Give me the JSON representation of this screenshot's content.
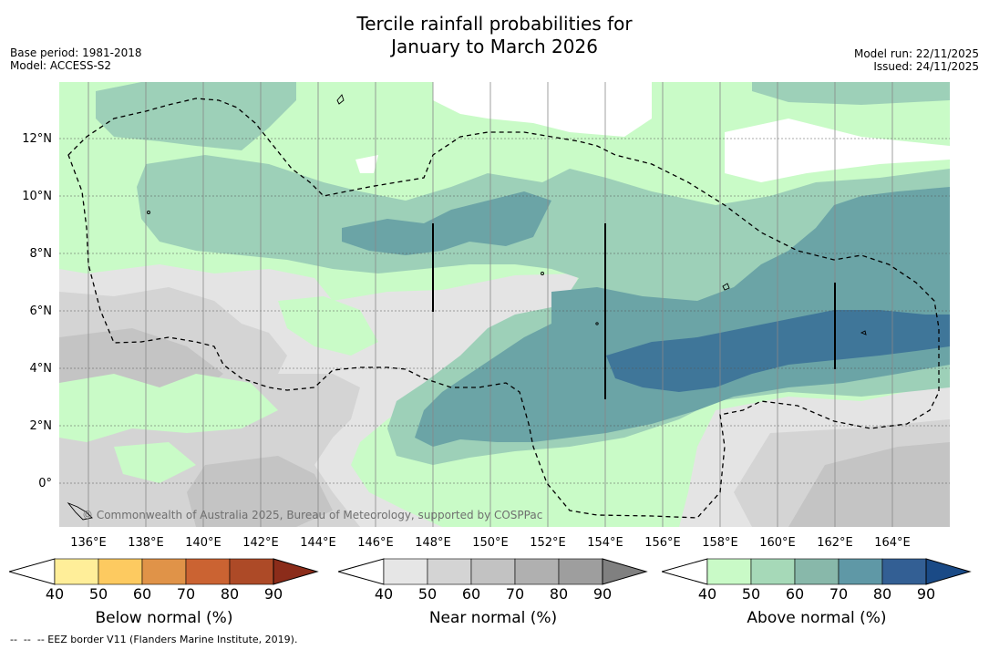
{
  "title_line1": "Tercile rainfall probabilities for",
  "title_line2": "January to March 2026",
  "meta": {
    "base_period": "Base period: 1981-2018",
    "model": "Model: ACCESS-S2",
    "model_run": "Model run: 22/11/2025",
    "issued": "Issued: 24/11/2025"
  },
  "copyright": "© Commonwealth of Australia 2025, Bureau of Meteorology, supported by COSPPac",
  "lat_labels": [
    "12°N",
    "10°N",
    "8°N",
    "6°N",
    "4°N",
    "2°N",
    "0°"
  ],
  "lon_labels": [
    "136°E",
    "138°E",
    "140°E",
    "142°E",
    "144°E",
    "146°E",
    "148°E",
    "150°E",
    "152°E",
    "154°E",
    "156°E",
    "158°E",
    "160°E",
    "162°E",
    "164°E"
  ],
  "colorbars": {
    "below": {
      "title": "Below normal (%)",
      "ticks": [
        "40",
        "50",
        "60",
        "70",
        "80",
        "90"
      ]
    },
    "near": {
      "title": "Near normal (%)",
      "ticks": [
        "40",
        "50",
        "60",
        "70",
        "80",
        "90"
      ]
    },
    "above": {
      "title": "Above normal (%)",
      "ticks": [
        "40",
        "50",
        "60",
        "70",
        "80",
        "90"
      ]
    }
  },
  "colors": {
    "below": [
      "#ffee99",
      "#fdca60",
      "#e09348",
      "#cb6332",
      "#ad4a27",
      "#8b2c1a"
    ],
    "near": [
      "#e6e6e6",
      "#d4d4d4",
      "#c2c2c2",
      "#b0b0b0",
      "#9e9e9e",
      "#808080"
    ],
    "above": [
      "#c9fac7",
      "#a6d9b8",
      "#88b8aa",
      "#5f98a6",
      "#335f94",
      "#1a4a86"
    ],
    "map_above_40": "#c9fbc7",
    "map_above_50": "#9dd0b8",
    "map_above_60": "#6ba4a6",
    "map_above_70": "#3f7699",
    "map_near_40": "#e4e4e4",
    "map_near_50": "#d4d4d4",
    "map_near_60": "#c4c4c4"
  },
  "footnote": "--  --  -- EEZ border V11 (Flanders Marine Institute, 2019)."
}
